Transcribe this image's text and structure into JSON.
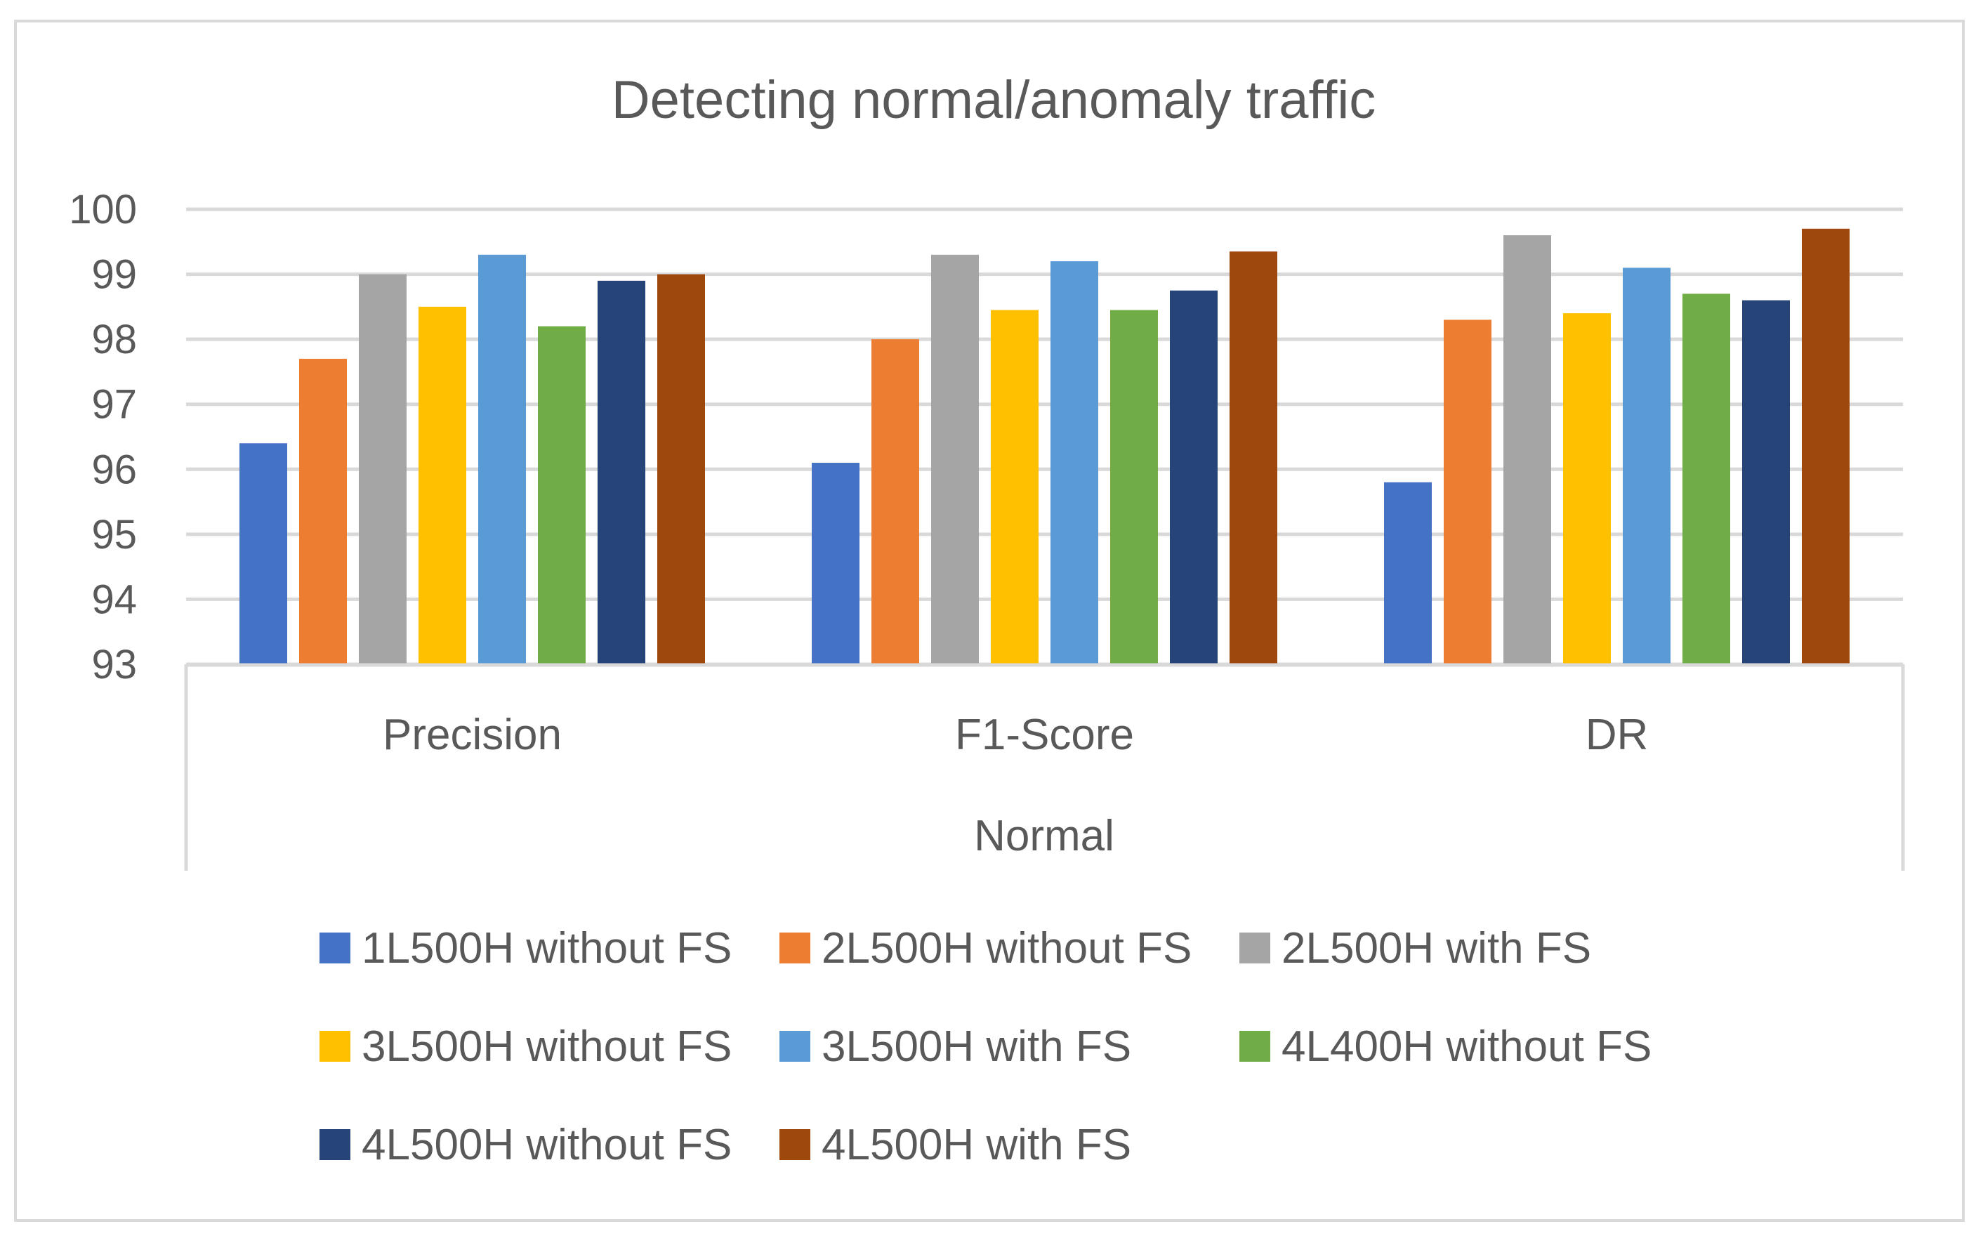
{
  "chart_data": {
    "type": "bar",
    "title": "Detecting normal/anomaly traffic",
    "group_label": "Normal",
    "categories": [
      "Precision",
      "F1-Score",
      "DR"
    ],
    "ylim": [
      93,
      100
    ],
    "yticks": [
      93,
      94,
      95,
      96,
      97,
      98,
      99,
      100
    ],
    "grid": true,
    "legend_position": "bottom",
    "series": [
      {
        "name": "1L500H without FS",
        "color": "#4472c4",
        "values": [
          96.4,
          96.1,
          95.8
        ]
      },
      {
        "name": "2L500H without FS",
        "color": "#ed7d31",
        "values": [
          97.7,
          98.0,
          98.3
        ]
      },
      {
        "name": "2L500H with FS",
        "color": "#a5a5a5",
        "values": [
          99.0,
          99.3,
          99.6
        ]
      },
      {
        "name": "3L500H without FS",
        "color": "#ffc000",
        "values": [
          98.5,
          98.45,
          98.4
        ]
      },
      {
        "name": "3L500H with FS",
        "color": "#5b9bd5",
        "values": [
          99.3,
          99.2,
          99.1
        ]
      },
      {
        "name": "4L400H without FS",
        "color": "#70ad47",
        "values": [
          98.2,
          98.45,
          98.7
        ]
      },
      {
        "name": "4L500H without FS",
        "color": "#264478",
        "values": [
          98.9,
          98.75,
          98.6
        ]
      },
      {
        "name": "4L500H with FS",
        "color": "#9e480e",
        "values": [
          99.0,
          99.35,
          99.7
        ]
      }
    ]
  }
}
